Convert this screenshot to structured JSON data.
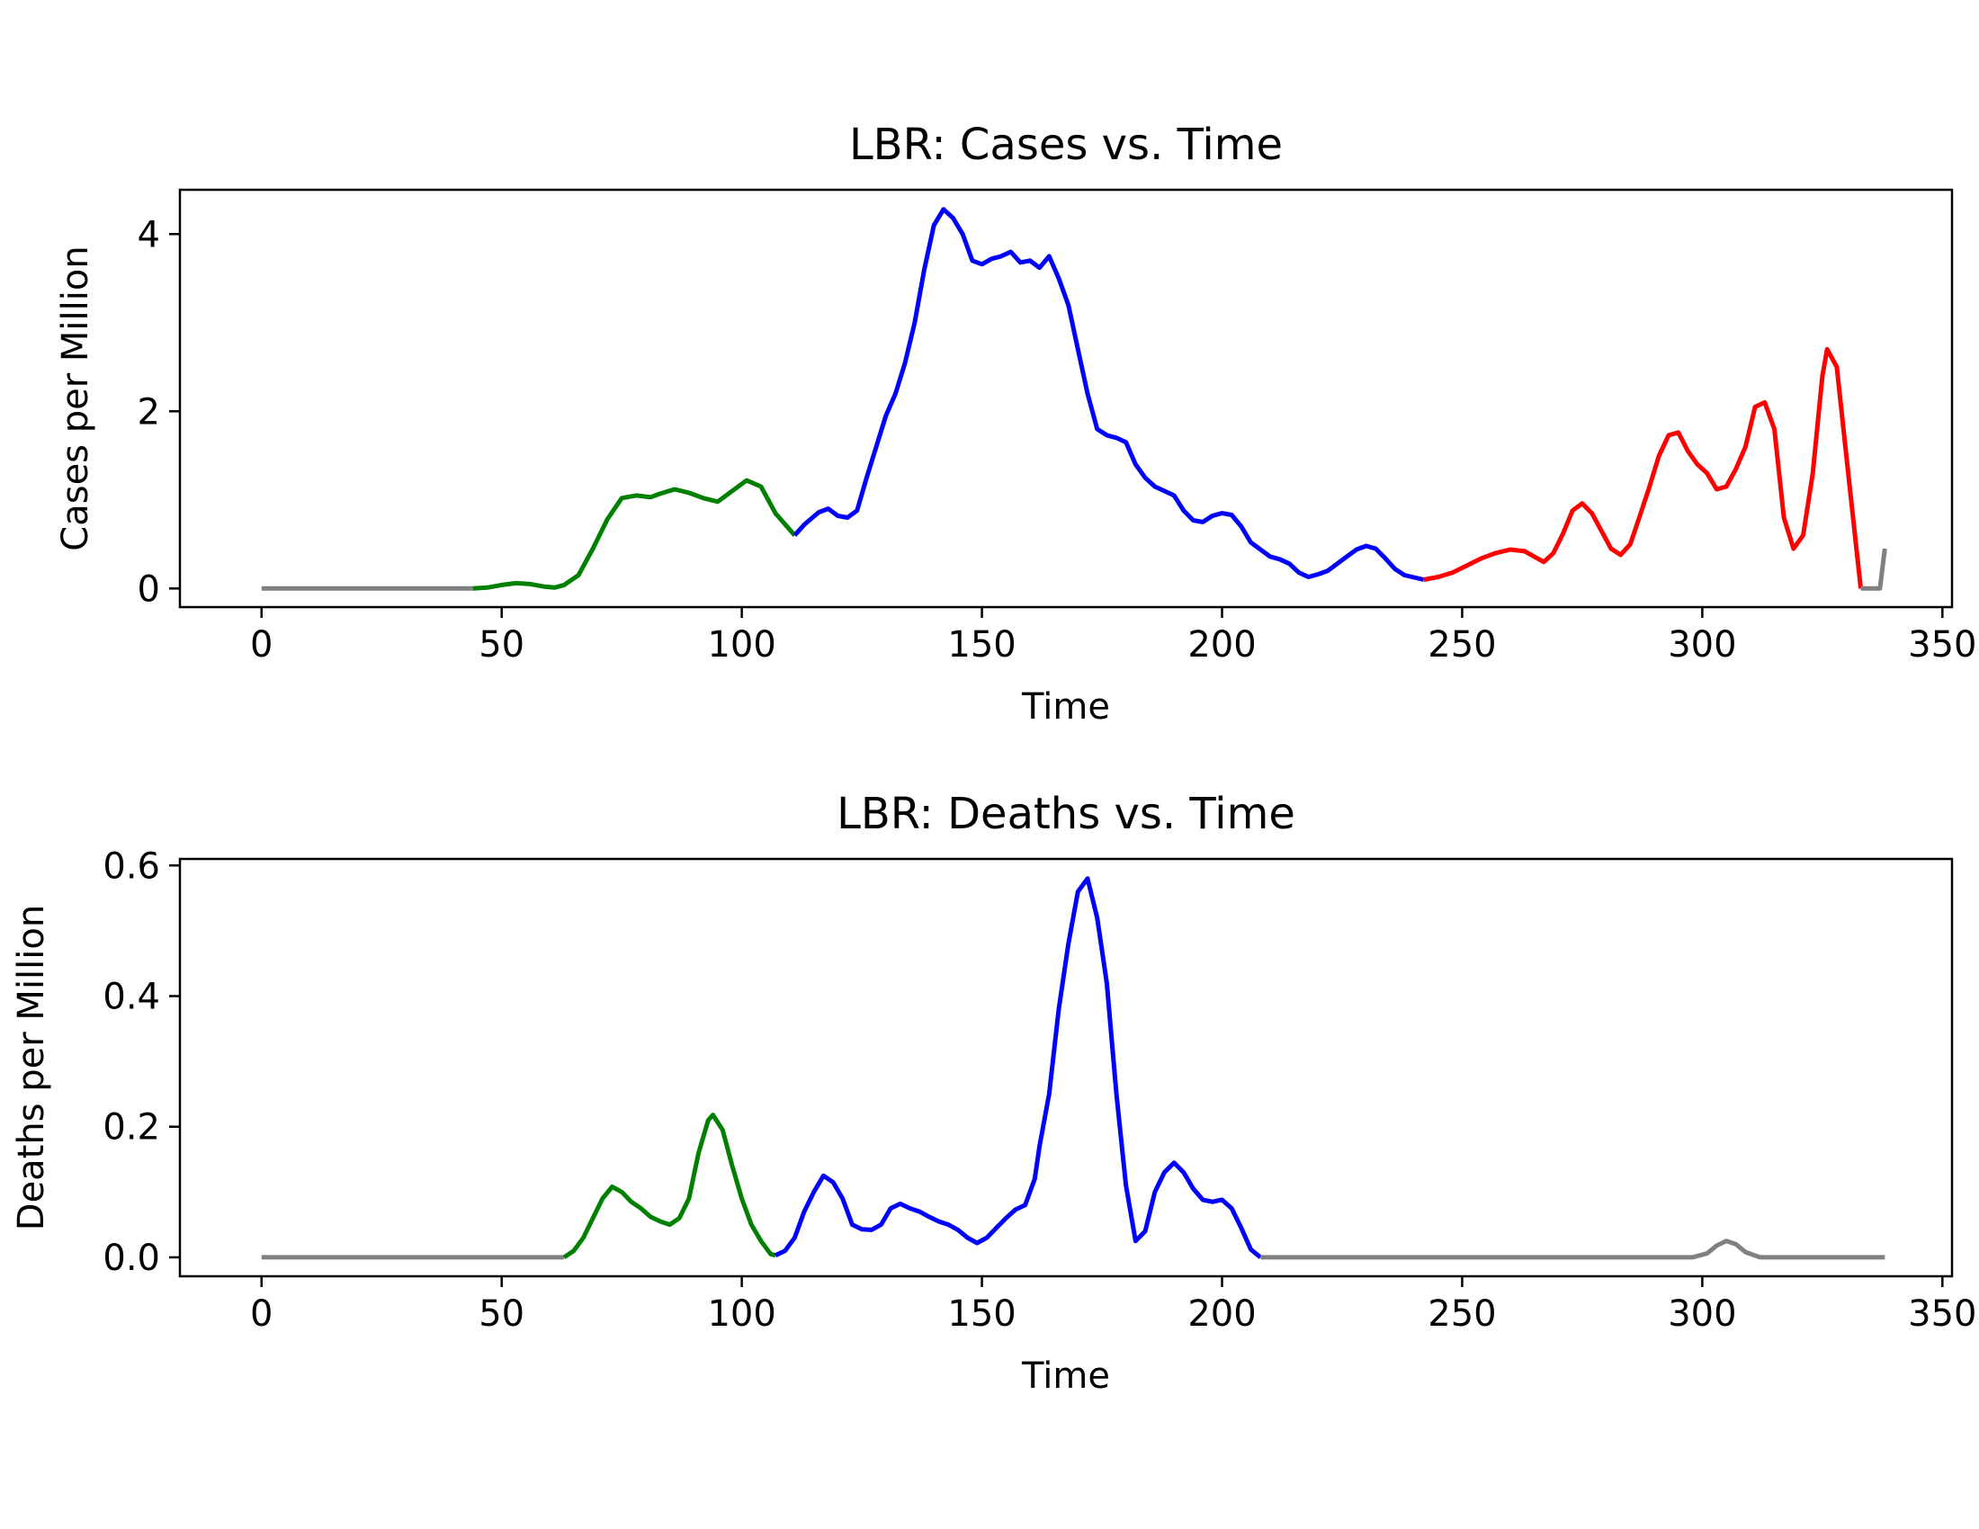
{
  "chart_data": [
    {
      "type": "line",
      "title": "LBR: Cases vs. Time",
      "xlabel": "Time",
      "ylabel": "Cases per Million",
      "xlim": [
        -17,
        352
      ],
      "ylim": [
        -0.21,
        4.5
      ],
      "xticks": [
        0,
        50,
        100,
        150,
        200,
        250,
        300,
        350
      ],
      "yticks": [
        0,
        2,
        4
      ],
      "grid": false,
      "legend": "none",
      "series": [
        {
          "color": "#808080",
          "points": [
            [
              0,
              0
            ],
            [
              44,
              0
            ]
          ]
        },
        {
          "color": "#008000",
          "points": [
            [
              44,
              0
            ],
            [
              47,
              0.01
            ],
            [
              50,
              0.04
            ],
            [
              53,
              0.06
            ],
            [
              56,
              0.05
            ],
            [
              59,
              0.02
            ],
            [
              61,
              0.01
            ],
            [
              63,
              0.04
            ],
            [
              66,
              0.15
            ],
            [
              69,
              0.45
            ],
            [
              72,
              0.78
            ],
            [
              75,
              1.02
            ],
            [
              78,
              1.05
            ],
            [
              81,
              1.03
            ],
            [
              83,
              1.07
            ],
            [
              86,
              1.12
            ],
            [
              89,
              1.08
            ],
            [
              92,
              1.02
            ],
            [
              95,
              0.98
            ],
            [
              98,
              1.1
            ],
            [
              101,
              1.22
            ],
            [
              104,
              1.15
            ],
            [
              107,
              0.85
            ],
            [
              111,
              0.6
            ]
          ]
        },
        {
          "color": "#0000ff",
          "points": [
            [
              111,
              0.6
            ],
            [
              113,
              0.72
            ],
            [
              116,
              0.86
            ],
            [
              118,
              0.9
            ],
            [
              120,
              0.82
            ],
            [
              122,
              0.8
            ],
            [
              124,
              0.88
            ],
            [
              126,
              1.25
            ],
            [
              128,
              1.6
            ],
            [
              130,
              1.95
            ],
            [
              132,
              2.2
            ],
            [
              134,
              2.55
            ],
            [
              136,
              3.0
            ],
            [
              138,
              3.6
            ],
            [
              140,
              4.1
            ],
            [
              142,
              4.28
            ],
            [
              144,
              4.18
            ],
            [
              146,
              4.0
            ],
            [
              148,
              3.7
            ],
            [
              150,
              3.66
            ],
            [
              152,
              3.72
            ],
            [
              154,
              3.75
            ],
            [
              156,
              3.8
            ],
            [
              158,
              3.68
            ],
            [
              160,
              3.7
            ],
            [
              162,
              3.62
            ],
            [
              164,
              3.75
            ],
            [
              166,
              3.5
            ],
            [
              168,
              3.2
            ],
            [
              170,
              2.7
            ],
            [
              172,
              2.2
            ],
            [
              174,
              1.8
            ],
            [
              176,
              1.73
            ],
            [
              178,
              1.7
            ],
            [
              180,
              1.65
            ],
            [
              182,
              1.4
            ],
            [
              184,
              1.25
            ],
            [
              186,
              1.15
            ],
            [
              188,
              1.1
            ],
            [
              190,
              1.05
            ],
            [
              192,
              0.88
            ],
            [
              194,
              0.77
            ],
            [
              196,
              0.75
            ],
            [
              198,
              0.82
            ],
            [
              200,
              0.85
            ],
            [
              202,
              0.83
            ],
            [
              204,
              0.7
            ],
            [
              206,
              0.52
            ],
            [
              208,
              0.44
            ],
            [
              210,
              0.36
            ],
            [
              212,
              0.33
            ],
            [
              214,
              0.28
            ],
            [
              216,
              0.18
            ],
            [
              218,
              0.13
            ],
            [
              220,
              0.16
            ],
            [
              222,
              0.2
            ],
            [
              224,
              0.28
            ],
            [
              226,
              0.36
            ],
            [
              228,
              0.44
            ],
            [
              230,
              0.48
            ],
            [
              232,
              0.45
            ],
            [
              234,
              0.34
            ],
            [
              236,
              0.22
            ],
            [
              238,
              0.15
            ],
            [
              242,
              0.1
            ]
          ]
        },
        {
          "color": "#ff0000",
          "points": [
            [
              242,
              0.1
            ],
            [
              245,
              0.13
            ],
            [
              248,
              0.18
            ],
            [
              251,
              0.26
            ],
            [
              254,
              0.34
            ],
            [
              257,
              0.4
            ],
            [
              260,
              0.44
            ],
            [
              263,
              0.42
            ],
            [
              265,
              0.36
            ],
            [
              267,
              0.3
            ],
            [
              269,
              0.4
            ],
            [
              271,
              0.62
            ],
            [
              273,
              0.88
            ],
            [
              275,
              0.96
            ],
            [
              277,
              0.85
            ],
            [
              279,
              0.65
            ],
            [
              281,
              0.45
            ],
            [
              283,
              0.38
            ],
            [
              285,
              0.5
            ],
            [
              287,
              0.82
            ],
            [
              289,
              1.15
            ],
            [
              291,
              1.5
            ],
            [
              293,
              1.73
            ],
            [
              295,
              1.76
            ],
            [
              297,
              1.55
            ],
            [
              299,
              1.4
            ],
            [
              301,
              1.3
            ],
            [
              303,
              1.12
            ],
            [
              305,
              1.15
            ],
            [
              307,
              1.35
            ],
            [
              309,
              1.6
            ],
            [
              311,
              2.05
            ],
            [
              313,
              2.1
            ],
            [
              315,
              1.8
            ],
            [
              317,
              0.8
            ],
            [
              319,
              0.45
            ],
            [
              321,
              0.6
            ],
            [
              323,
              1.3
            ],
            [
              325,
              2.4
            ],
            [
              326,
              2.7
            ],
            [
              328,
              2.5
            ],
            [
              330,
              1.5
            ],
            [
              332,
              0.5
            ],
            [
              333,
              0.0
            ]
          ]
        },
        {
          "color": "#808080",
          "points": [
            [
              333,
              0
            ],
            [
              337,
              0
            ],
            [
              338,
              0.45
            ]
          ]
        }
      ]
    },
    {
      "type": "line",
      "title": "LBR: Deaths vs. Time",
      "xlabel": "Time",
      "ylabel": "Deaths per Million",
      "xlim": [
        -17,
        352
      ],
      "ylim": [
        -0.029,
        0.61
      ],
      "xticks": [
        0,
        50,
        100,
        150,
        200,
        250,
        300,
        350
      ],
      "yticks": [
        "0.0",
        "0.2",
        "0.4",
        "0.6"
      ],
      "grid": false,
      "legend": "none",
      "series": [
        {
          "color": "#808080",
          "points": [
            [
              0,
              0
            ],
            [
              63,
              0
            ]
          ]
        },
        {
          "color": "#008000",
          "points": [
            [
              63,
              0
            ],
            [
              65,
              0.01
            ],
            [
              67,
              0.03
            ],
            [
              69,
              0.06
            ],
            [
              71,
              0.09
            ],
            [
              73,
              0.108
            ],
            [
              75,
              0.1
            ],
            [
              77,
              0.085
            ],
            [
              79,
              0.075
            ],
            [
              81,
              0.062
            ],
            [
              83,
              0.055
            ],
            [
              85,
              0.05
            ],
            [
              87,
              0.06
            ],
            [
              89,
              0.09
            ],
            [
              91,
              0.16
            ],
            [
              93,
              0.21
            ],
            [
              94,
              0.218
            ],
            [
              96,
              0.195
            ],
            [
              98,
              0.14
            ],
            [
              100,
              0.09
            ],
            [
              102,
              0.05
            ],
            [
              104,
              0.025
            ],
            [
              106,
              0.005
            ],
            [
              107,
              0.003
            ]
          ]
        },
        {
          "color": "#0000ff",
          "points": [
            [
              107,
              0.003
            ],
            [
              109,
              0.01
            ],
            [
              111,
              0.03
            ],
            [
              113,
              0.07
            ],
            [
              115,
              0.1
            ],
            [
              117,
              0.125
            ],
            [
              119,
              0.115
            ],
            [
              121,
              0.09
            ],
            [
              123,
              0.05
            ],
            [
              125,
              0.043
            ],
            [
              127,
              0.042
            ],
            [
              129,
              0.05
            ],
            [
              131,
              0.075
            ],
            [
              133,
              0.082
            ],
            [
              135,
              0.075
            ],
            [
              137,
              0.07
            ],
            [
              139,
              0.062
            ],
            [
              141,
              0.055
            ],
            [
              143,
              0.05
            ],
            [
              145,
              0.042
            ],
            [
              147,
              0.03
            ],
            [
              149,
              0.022
            ],
            [
              151,
              0.03
            ],
            [
              153,
              0.045
            ],
            [
              155,
              0.06
            ],
            [
              157,
              0.073
            ],
            [
              159,
              0.08
            ],
            [
              161,
              0.12
            ],
            [
              162,
              0.17
            ],
            [
              164,
              0.25
            ],
            [
              166,
              0.38
            ],
            [
              168,
              0.48
            ],
            [
              170,
              0.56
            ],
            [
              172,
              0.58
            ],
            [
              174,
              0.52
            ],
            [
              176,
              0.42
            ],
            [
              178,
              0.25
            ],
            [
              180,
              0.11
            ],
            [
              182,
              0.025
            ],
            [
              184,
              0.04
            ],
            [
              186,
              0.1
            ],
            [
              188,
              0.13
            ],
            [
              190,
              0.145
            ],
            [
              192,
              0.13
            ],
            [
              194,
              0.105
            ],
            [
              196,
              0.088
            ],
            [
              198,
              0.085
            ],
            [
              200,
              0.088
            ],
            [
              202,
              0.075
            ],
            [
              204,
              0.045
            ],
            [
              206,
              0.012
            ],
            [
              208,
              0.0
            ]
          ]
        },
        {
          "color": "#808080",
          "points": [
            [
              208,
              0
            ],
            [
              298,
              0
            ],
            [
              301,
              0.006
            ],
            [
              303,
              0.018
            ],
            [
              305,
              0.025
            ],
            [
              307,
              0.02
            ],
            [
              309,
              0.008
            ],
            [
              312,
              0
            ],
            [
              338,
              0
            ]
          ]
        }
      ]
    }
  ]
}
